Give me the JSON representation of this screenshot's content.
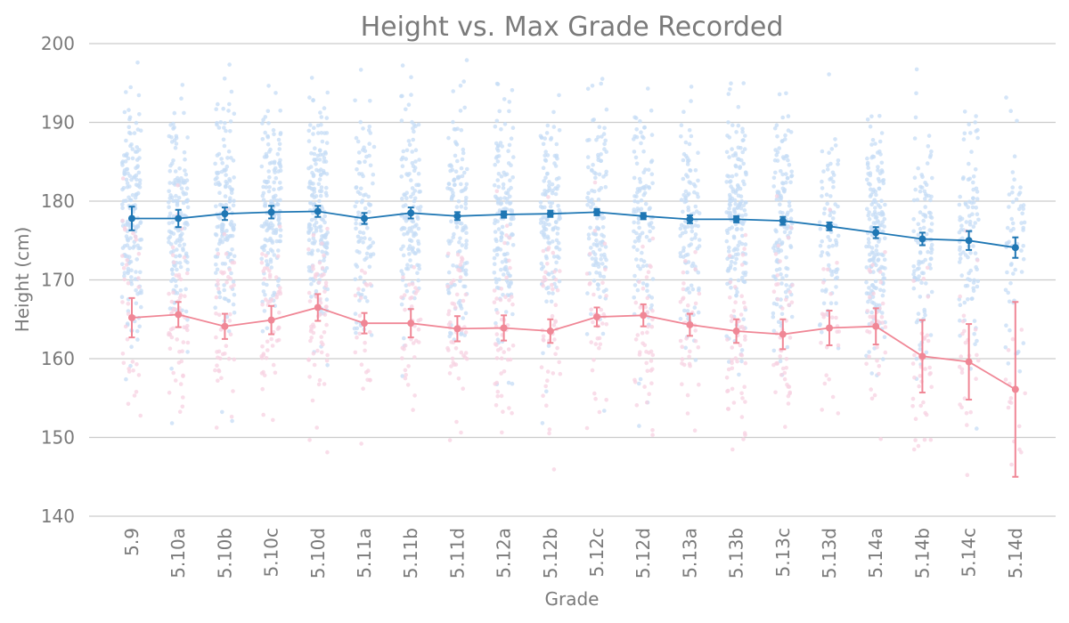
{
  "chart_data": {
    "type": "line",
    "title": "Height vs. Max Grade Recorded",
    "xlabel": "Grade",
    "ylabel": "Height (cm)",
    "ylim": [
      140,
      200
    ],
    "yticks": [
      140,
      150,
      160,
      170,
      180,
      190,
      200
    ],
    "grid": "horizontal",
    "legend": "none",
    "categories": [
      "5.9",
      "5.10a",
      "5.10b",
      "5.10c",
      "5.10d",
      "5.11a",
      "5.11b",
      "5.11d",
      "5.12a",
      "5.12b",
      "5.12c",
      "5.12d",
      "5.13a",
      "5.13b",
      "5.13c",
      "5.13d",
      "5.14a",
      "5.14b",
      "5.14c",
      "5.14d"
    ],
    "series": [
      {
        "color": "#1f77b4",
        "scatter_color": "#c6dcf5",
        "values": [
          177.8,
          177.8,
          178.4,
          178.6,
          178.7,
          177.8,
          178.5,
          178.1,
          178.3,
          178.4,
          178.6,
          178.1,
          177.7,
          177.7,
          177.5,
          176.8,
          176.0,
          175.2,
          175.0,
          174.1
        ],
        "error": [
          1.5,
          1.1,
          0.8,
          0.8,
          0.7,
          0.7,
          0.7,
          0.5,
          0.4,
          0.4,
          0.4,
          0.4,
          0.5,
          0.4,
          0.5,
          0.5,
          0.7,
          0.8,
          1.2,
          1.3
        ],
        "scatter_range": [
          151,
          198
        ],
        "scatter_n": [
          170,
          150,
          150,
          160,
          180,
          100,
          130,
          130,
          150,
          130,
          120,
          110,
          110,
          170,
          140,
          80,
          180,
          110,
          100,
          60
        ]
      },
      {
        "color": "#f08796",
        "scatter_color": "#f7d1e1",
        "values": [
          165.2,
          165.6,
          164.1,
          164.9,
          166.5,
          164.5,
          164.5,
          163.8,
          163.9,
          163.5,
          165.3,
          165.5,
          164.3,
          163.5,
          163.1,
          163.9,
          164.1,
          160.3,
          159.6,
          156.1
        ],
        "error": [
          2.5,
          1.6,
          1.6,
          1.8,
          1.7,
          1.3,
          1.8,
          1.6,
          1.6,
          1.5,
          1.2,
          1.4,
          1.4,
          1.5,
          1.9,
          2.2,
          2.3,
          4.6,
          4.8,
          11.1
        ],
        "scatter_range": [
          145,
          183
        ],
        "scatter_n": [
          35,
          55,
          45,
          50,
          60,
          25,
          35,
          50,
          50,
          45,
          35,
          45,
          35,
          55,
          45,
          25,
          35,
          35,
          25,
          15
        ]
      }
    ]
  }
}
